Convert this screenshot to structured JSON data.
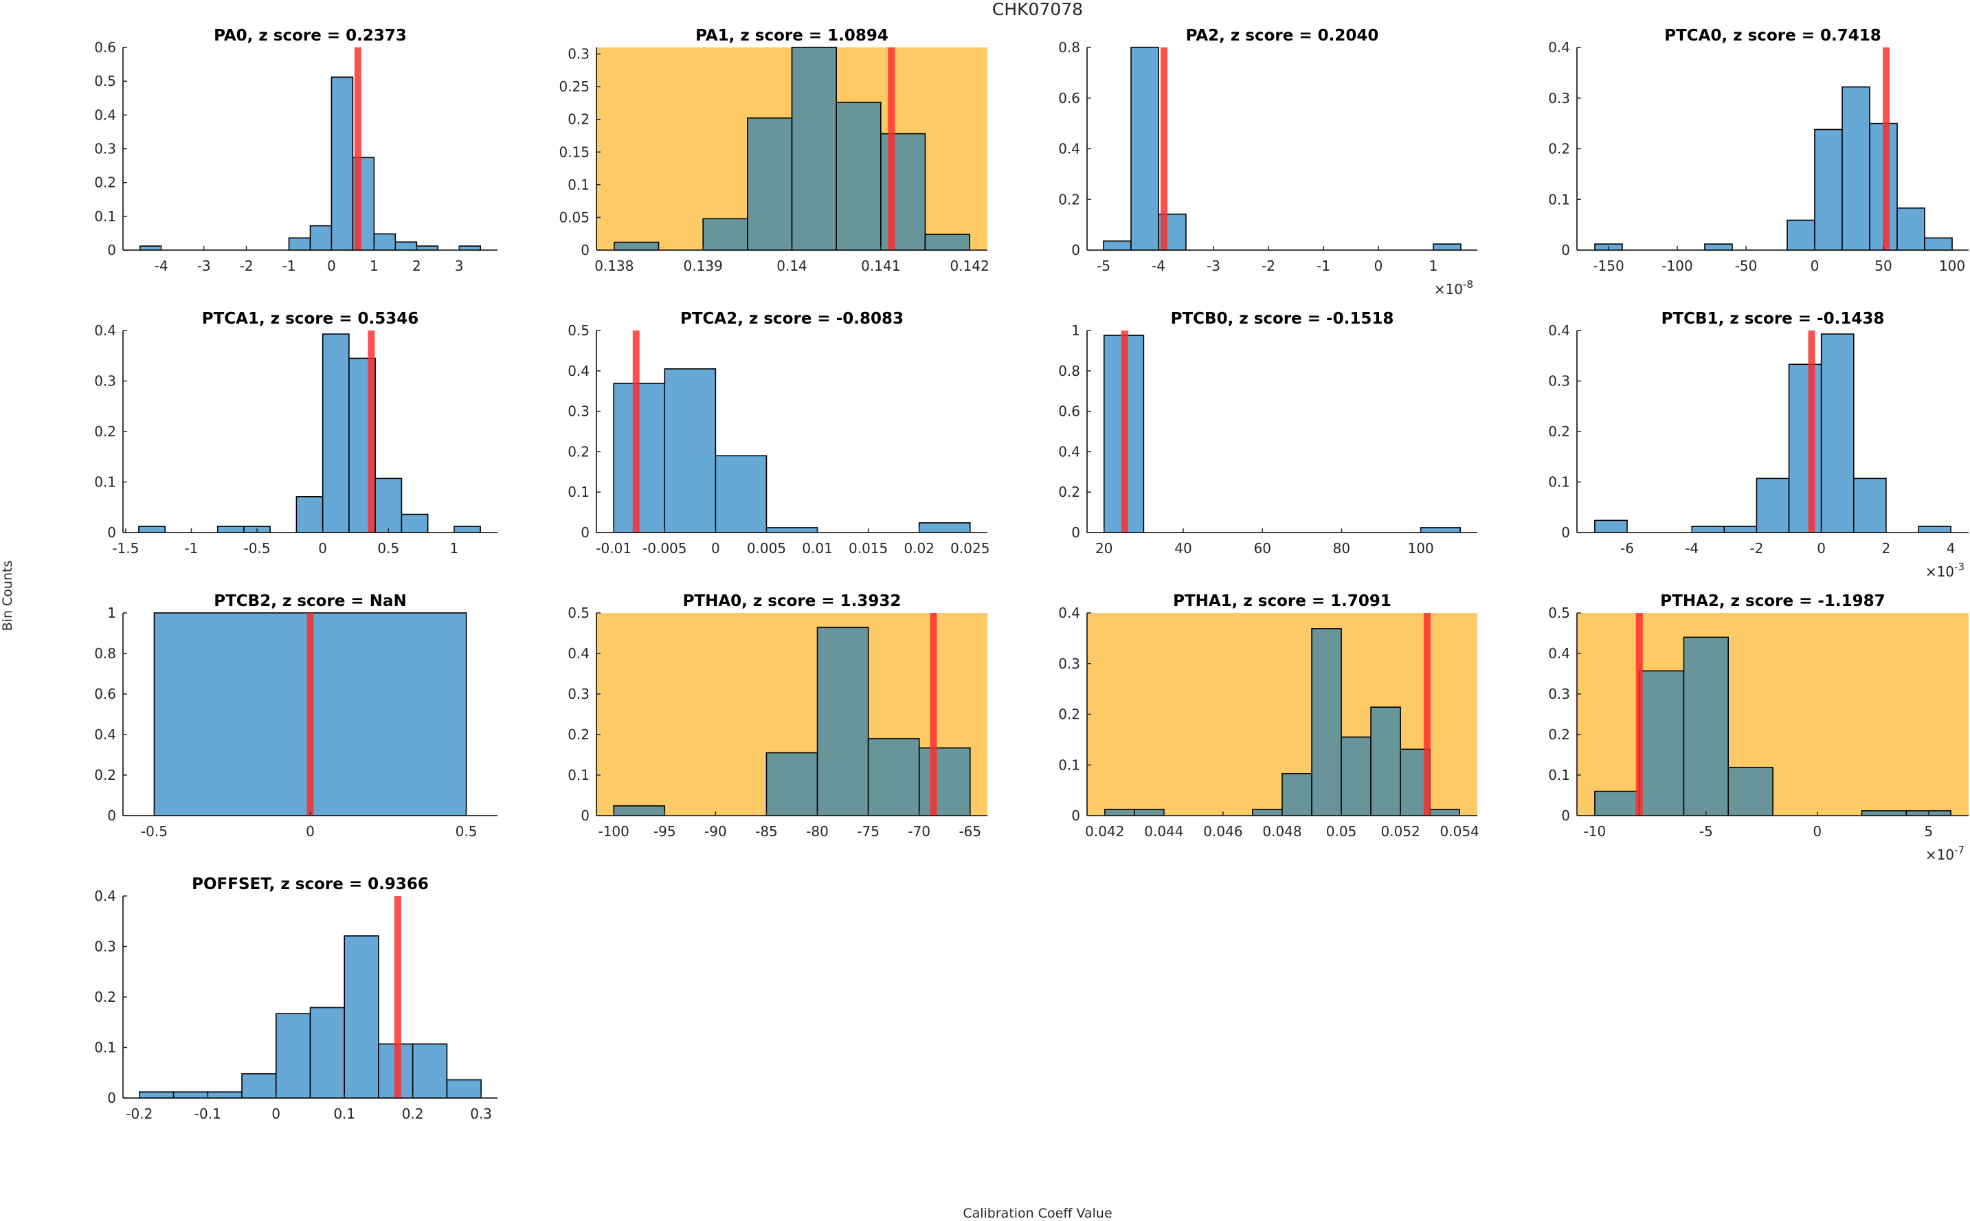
{
  "figure": {
    "title": "CHK07078",
    "ylabel": "Bin Counts",
    "xlabel": "Calibration Coeff Value"
  },
  "colors": {
    "bar_normal": "#66a9d6",
    "bar_flagged": "#68959a",
    "flag_background": "#fdca66",
    "marker_line": "#ff2a2a",
    "bar_edge": "#000000"
  },
  "chart_data": [
    {
      "type": "bar",
      "name": "PA0",
      "title": "PA0, z score = 0.2373",
      "z_score": 0.2373,
      "flagged": false,
      "bin_edges": [
        -4.5,
        -4,
        -3.5,
        -3,
        -2.5,
        -2,
        -1.5,
        -1,
        -0.5,
        0,
        0.5,
        1,
        1.5,
        2,
        2.5,
        3,
        3.5
      ],
      "values": [
        0.012,
        0,
        0,
        0,
        0,
        0,
        0,
        0.036,
        0.072,
        0.512,
        0.274,
        0.048,
        0.024,
        0.012,
        0,
        0.012
      ],
      "marker_x": 0.62,
      "xlim": [
        -4.9,
        3.9
      ],
      "ylim": [
        0,
        0.6
      ],
      "xticks": [
        "-4",
        "-3",
        "-2",
        "-1",
        "0",
        "1",
        "2",
        "3"
      ],
      "xtick_values": [
        -4,
        -3,
        -2,
        -1,
        0,
        1,
        2,
        3
      ],
      "yticks": [
        "0",
        "0.1",
        "0.2",
        "0.3",
        "0.4",
        "0.5",
        "0.6"
      ],
      "ytick_values": [
        0,
        0.1,
        0.2,
        0.3,
        0.4,
        0.5,
        0.6
      ],
      "exponent": ""
    },
    {
      "type": "bar",
      "name": "PA1",
      "title": "PA1, z score = 1.0894",
      "z_score": 1.0894,
      "flagged": true,
      "bin_edges": [
        0.138,
        0.1385,
        0.139,
        0.1395,
        0.14,
        0.1405,
        0.141,
        0.1415,
        0.142
      ],
      "values": [
        0.012,
        0,
        0.048,
        0.202,
        0.31,
        0.226,
        0.178,
        0.024
      ],
      "marker_x": 0.14112,
      "xlim": [
        0.1378,
        0.1422
      ],
      "ylim": [
        0,
        0.31
      ],
      "xticks": [
        "0.138",
        "0.139",
        "0.14",
        "0.141",
        "0.142"
      ],
      "xtick_values": [
        0.138,
        0.139,
        0.14,
        0.141,
        0.142
      ],
      "yticks": [
        "0",
        "0.05",
        "0.1",
        "0.15",
        "0.2",
        "0.25",
        "0.3"
      ],
      "ytick_values": [
        0,
        0.05,
        0.1,
        0.15,
        0.2,
        0.25,
        0.3
      ],
      "exponent": ""
    },
    {
      "type": "bar",
      "name": "PA2",
      "title": "PA2, z score = 0.2040",
      "z_score": 0.204,
      "flagged": false,
      "bin_edges": [
        -5,
        -4.5,
        -4,
        -3.5,
        -3,
        -2.5,
        -2,
        -1.5,
        -1,
        -0.5,
        0,
        0.5,
        1,
        1.5
      ],
      "values": [
        0.036,
        0.8,
        0.142,
        0,
        0,
        0,
        0,
        0,
        0,
        0,
        0,
        0,
        0.024
      ],
      "marker_x": -3.9,
      "xlim": [
        -5.3,
        1.8
      ],
      "ylim": [
        0,
        0.8
      ],
      "xticks": [
        "-5",
        "-4",
        "-3",
        "-2",
        "-1",
        "0",
        "1"
      ],
      "xtick_values": [
        -5,
        -4,
        -3,
        -2,
        -1,
        0,
        1
      ],
      "yticks": [
        "0",
        "0.2",
        "0.4",
        "0.6",
        "0.8"
      ],
      "ytick_values": [
        0,
        0.2,
        0.4,
        0.6,
        0.8
      ],
      "exponent": "-8"
    },
    {
      "type": "bar",
      "name": "PTCA0",
      "title": "PTCA0, z score = 0.7418",
      "z_score": 0.7418,
      "flagged": false,
      "bin_edges": [
        -160,
        -140,
        -120,
        -100,
        -80,
        -60,
        -40,
        -20,
        0,
        20,
        40,
        60,
        80,
        100
      ],
      "values": [
        0.012,
        0,
        0,
        0,
        0.012,
        0,
        0,
        0.059,
        0.238,
        0.322,
        0.25,
        0.083,
        0.024
      ],
      "marker_x": 52,
      "xlim": [
        -173,
        112
      ],
      "ylim": [
        0,
        0.4
      ],
      "xticks": [
        "-150",
        "-100",
        "-50",
        "0",
        "50",
        "100"
      ],
      "xtick_values": [
        -150,
        -100,
        -50,
        0,
        50,
        100
      ],
      "yticks": [
        "0",
        "0.1",
        "0.2",
        "0.3",
        "0.4"
      ],
      "ytick_values": [
        0,
        0.1,
        0.2,
        0.3,
        0.4
      ],
      "exponent": ""
    },
    {
      "type": "bar",
      "name": "PTCA1",
      "title": "PTCA1, z score = 0.5346",
      "z_score": 0.5346,
      "flagged": false,
      "bin_edges": [
        -1.4,
        -1.2,
        -1.0,
        -0.8,
        -0.6,
        -0.4,
        -0.2,
        0,
        0.2,
        0.4,
        0.6,
        0.8,
        1.0,
        1.2
      ],
      "values": [
        0.012,
        0,
        0,
        0.012,
        0.012,
        0,
        0.071,
        0.393,
        0.345,
        0.107,
        0.036,
        0,
        0.012
      ],
      "marker_x": 0.37,
      "xlim": [
        -1.52,
        1.33
      ],
      "ylim": [
        0,
        0.4
      ],
      "xticks": [
        "-1.5",
        "-1",
        "-0.5",
        "0",
        "0.5",
        "1"
      ],
      "xtick_values": [
        -1.5,
        -1,
        -0.5,
        0,
        0.5,
        1
      ],
      "yticks": [
        "0",
        "0.1",
        "0.2",
        "0.3",
        "0.4"
      ],
      "ytick_values": [
        0,
        0.1,
        0.2,
        0.3,
        0.4
      ],
      "exponent": ""
    },
    {
      "type": "bar",
      "name": "PTCA2",
      "title": "PTCA2, z score = -0.8083",
      "z_score": -0.8083,
      "flagged": false,
      "bin_edges": [
        -0.01,
        -0.005,
        0,
        0.005,
        0.01,
        0.015,
        0.02,
        0.025
      ],
      "values": [
        0.369,
        0.405,
        0.19,
        0.012,
        0,
        0,
        0.024
      ],
      "marker_x": -0.0078,
      "xlim": [
        -0.0117,
        0.0267
      ],
      "ylim": [
        0,
        0.5
      ],
      "xticks": [
        "-0.01",
        "-0.005",
        "0",
        "0.005",
        "0.01",
        "0.015",
        "0.02",
        "0.025"
      ],
      "xtick_values": [
        -0.01,
        -0.005,
        0,
        0.005,
        0.01,
        0.015,
        0.02,
        0.025
      ],
      "yticks": [
        "0",
        "0.1",
        "0.2",
        "0.3",
        "0.4",
        "0.5"
      ],
      "ytick_values": [
        0,
        0.1,
        0.2,
        0.3,
        0.4,
        0.5
      ],
      "exponent": ""
    },
    {
      "type": "bar",
      "name": "PTCB0",
      "title": "PTCB0, z score = -0.1518",
      "z_score": -0.1518,
      "flagged": false,
      "bin_edges": [
        20,
        30,
        40,
        50,
        60,
        70,
        80,
        90,
        100,
        110
      ],
      "values": [
        0.976,
        0,
        0,
        0,
        0,
        0,
        0,
        0,
        0.024
      ],
      "marker_x": 25.2,
      "xlim": [
        15.7,
        114.3
      ],
      "ylim": [
        0,
        1
      ],
      "xticks": [
        "20",
        "40",
        "60",
        "80",
        "100"
      ],
      "xtick_values": [
        20,
        40,
        60,
        80,
        100
      ],
      "yticks": [
        "0",
        "0.2",
        "0.4",
        "0.6",
        "0.8",
        "1"
      ],
      "ytick_values": [
        0,
        0.2,
        0.4,
        0.6,
        0.8,
        1
      ],
      "exponent": ""
    },
    {
      "type": "bar",
      "name": "PTCB1",
      "title": "PTCB1, z score = -0.1438",
      "z_score": -0.1438,
      "flagged": false,
      "bin_edges": [
        -7,
        -6,
        -5,
        -4,
        -3,
        -2,
        -1,
        0,
        1,
        2,
        3,
        4
      ],
      "values": [
        0.024,
        0,
        0,
        0.012,
        0.012,
        0.107,
        0.333,
        0.393,
        0.107,
        0,
        0.012
      ],
      "marker_x": -0.3,
      "xlim": [
        -7.55,
        4.55
      ],
      "ylim": [
        0,
        0.4
      ],
      "xticks": [
        "-6",
        "-4",
        "-2",
        "0",
        "2",
        "4"
      ],
      "xtick_values": [
        -6,
        -4,
        -2,
        0,
        2,
        4
      ],
      "yticks": [
        "0",
        "0.1",
        "0.2",
        "0.3",
        "0.4"
      ],
      "ytick_values": [
        0,
        0.1,
        0.2,
        0.3,
        0.4
      ],
      "exponent": "-3"
    },
    {
      "type": "bar",
      "name": "PTCB2",
      "title": "PTCB2, z score = NaN",
      "z_score": "NaN",
      "flagged": false,
      "bin_edges": [
        -0.5,
        0.5
      ],
      "values": [
        1
      ],
      "marker_x": 0,
      "xlim": [
        -0.6,
        0.6
      ],
      "ylim": [
        0,
        1
      ],
      "xticks": [
        "-0.5",
        "0",
        "0.5"
      ],
      "xtick_values": [
        -0.5,
        0,
        0.5
      ],
      "yticks": [
        "0",
        "0.2",
        "0.4",
        "0.6",
        "0.8",
        "1"
      ],
      "ytick_values": [
        0,
        0.2,
        0.4,
        0.6,
        0.8,
        1
      ],
      "exponent": ""
    },
    {
      "type": "bar",
      "name": "PTHA0",
      "title": "PTHA0, z score = 1.3932",
      "z_score": 1.3932,
      "flagged": true,
      "bin_edges": [
        -100,
        -95,
        -90,
        -85,
        -80,
        -75,
        -70,
        -65
      ],
      "values": [
        0.024,
        0,
        0,
        0.155,
        0.464,
        0.19,
        0.167
      ],
      "marker_x": -68.6,
      "xlim": [
        -101.7,
        -63.3
      ],
      "ylim": [
        0,
        0.5
      ],
      "xticks": [
        "-100",
        "-95",
        "-90",
        "-85",
        "-80",
        "-75",
        "-70",
        "-65"
      ],
      "xtick_values": [
        -100,
        -95,
        -90,
        -85,
        -80,
        -75,
        -70,
        -65
      ],
      "yticks": [
        "0",
        "0.1",
        "0.2",
        "0.3",
        "0.4",
        "0.5"
      ],
      "ytick_values": [
        0,
        0.1,
        0.2,
        0.3,
        0.4,
        0.5
      ],
      "exponent": ""
    },
    {
      "type": "bar",
      "name": "PTHA1",
      "title": "PTHA1, z score = 1.7091",
      "z_score": 1.7091,
      "flagged": true,
      "bin_edges": [
        0.042,
        0.043,
        0.044,
        0.045,
        0.046,
        0.047,
        0.048,
        0.049,
        0.05,
        0.051,
        0.052,
        0.053,
        0.054
      ],
      "values": [
        0.012,
        0.012,
        0,
        0,
        0,
        0.012,
        0.083,
        0.369,
        0.155,
        0.214,
        0.131,
        0.012
      ],
      "marker_x": 0.0529,
      "xlim": [
        0.0414,
        0.0546
      ],
      "ylim": [
        0,
        0.4
      ],
      "xticks": [
        "0.042",
        "0.044",
        "0.046",
        "0.048",
        "0.05",
        "0.052",
        "0.054"
      ],
      "xtick_values": [
        0.042,
        0.044,
        0.046,
        0.048,
        0.05,
        0.052,
        0.054
      ],
      "yticks": [
        "0",
        "0.1",
        "0.2",
        "0.3",
        "0.4"
      ],
      "ytick_values": [
        0,
        0.1,
        0.2,
        0.3,
        0.4
      ],
      "exponent": ""
    },
    {
      "type": "bar",
      "name": "PTHA2",
      "title": "PTHA2, z score = -1.1987",
      "z_score": -1.1987,
      "flagged": true,
      "bin_edges": [
        -10,
        -8,
        -6,
        -4,
        -2,
        0,
        2,
        4,
        6
      ],
      "values": [
        0.06,
        0.357,
        0.44,
        0.119,
        0,
        0,
        0.012,
        0.012
      ],
      "marker_x": -8.0,
      "xlim": [
        -10.8,
        6.8
      ],
      "ylim": [
        0,
        0.5
      ],
      "xticks": [
        "-10",
        "-5",
        "0",
        "5"
      ],
      "xtick_values": [
        -10,
        -5,
        0,
        5
      ],
      "yticks": [
        "0",
        "0.1",
        "0.2",
        "0.3",
        "0.4",
        "0.5"
      ],
      "ytick_values": [
        0,
        0.1,
        0.2,
        0.3,
        0.4,
        0.5
      ],
      "exponent": "-7"
    },
    {
      "type": "bar",
      "name": "POFFSET",
      "title": "POFFSET, z score = 0.9366",
      "z_score": 0.9366,
      "flagged": false,
      "bin_edges": [
        -0.2,
        -0.15,
        -0.1,
        -0.05,
        0,
        0.05,
        0.1,
        0.15,
        0.2,
        0.25,
        0.3
      ],
      "values": [
        0.012,
        0.012,
        0.012,
        0.048,
        0.167,
        0.179,
        0.321,
        0.107,
        0.107,
        0.036
      ],
      "marker_x": 0.178,
      "xlim": [
        -0.224,
        0.324
      ],
      "ylim": [
        0,
        0.4
      ],
      "xticks": [
        "-0.2",
        "-0.1",
        "0",
        "0.1",
        "0.2",
        "0.3"
      ],
      "xtick_values": [
        -0.2,
        -0.1,
        0,
        0.1,
        0.2,
        0.3
      ],
      "yticks": [
        "0",
        "0.1",
        "0.2",
        "0.3",
        "0.4"
      ],
      "ytick_values": [
        0,
        0.1,
        0.2,
        0.3,
        0.4
      ],
      "exponent": ""
    }
  ]
}
